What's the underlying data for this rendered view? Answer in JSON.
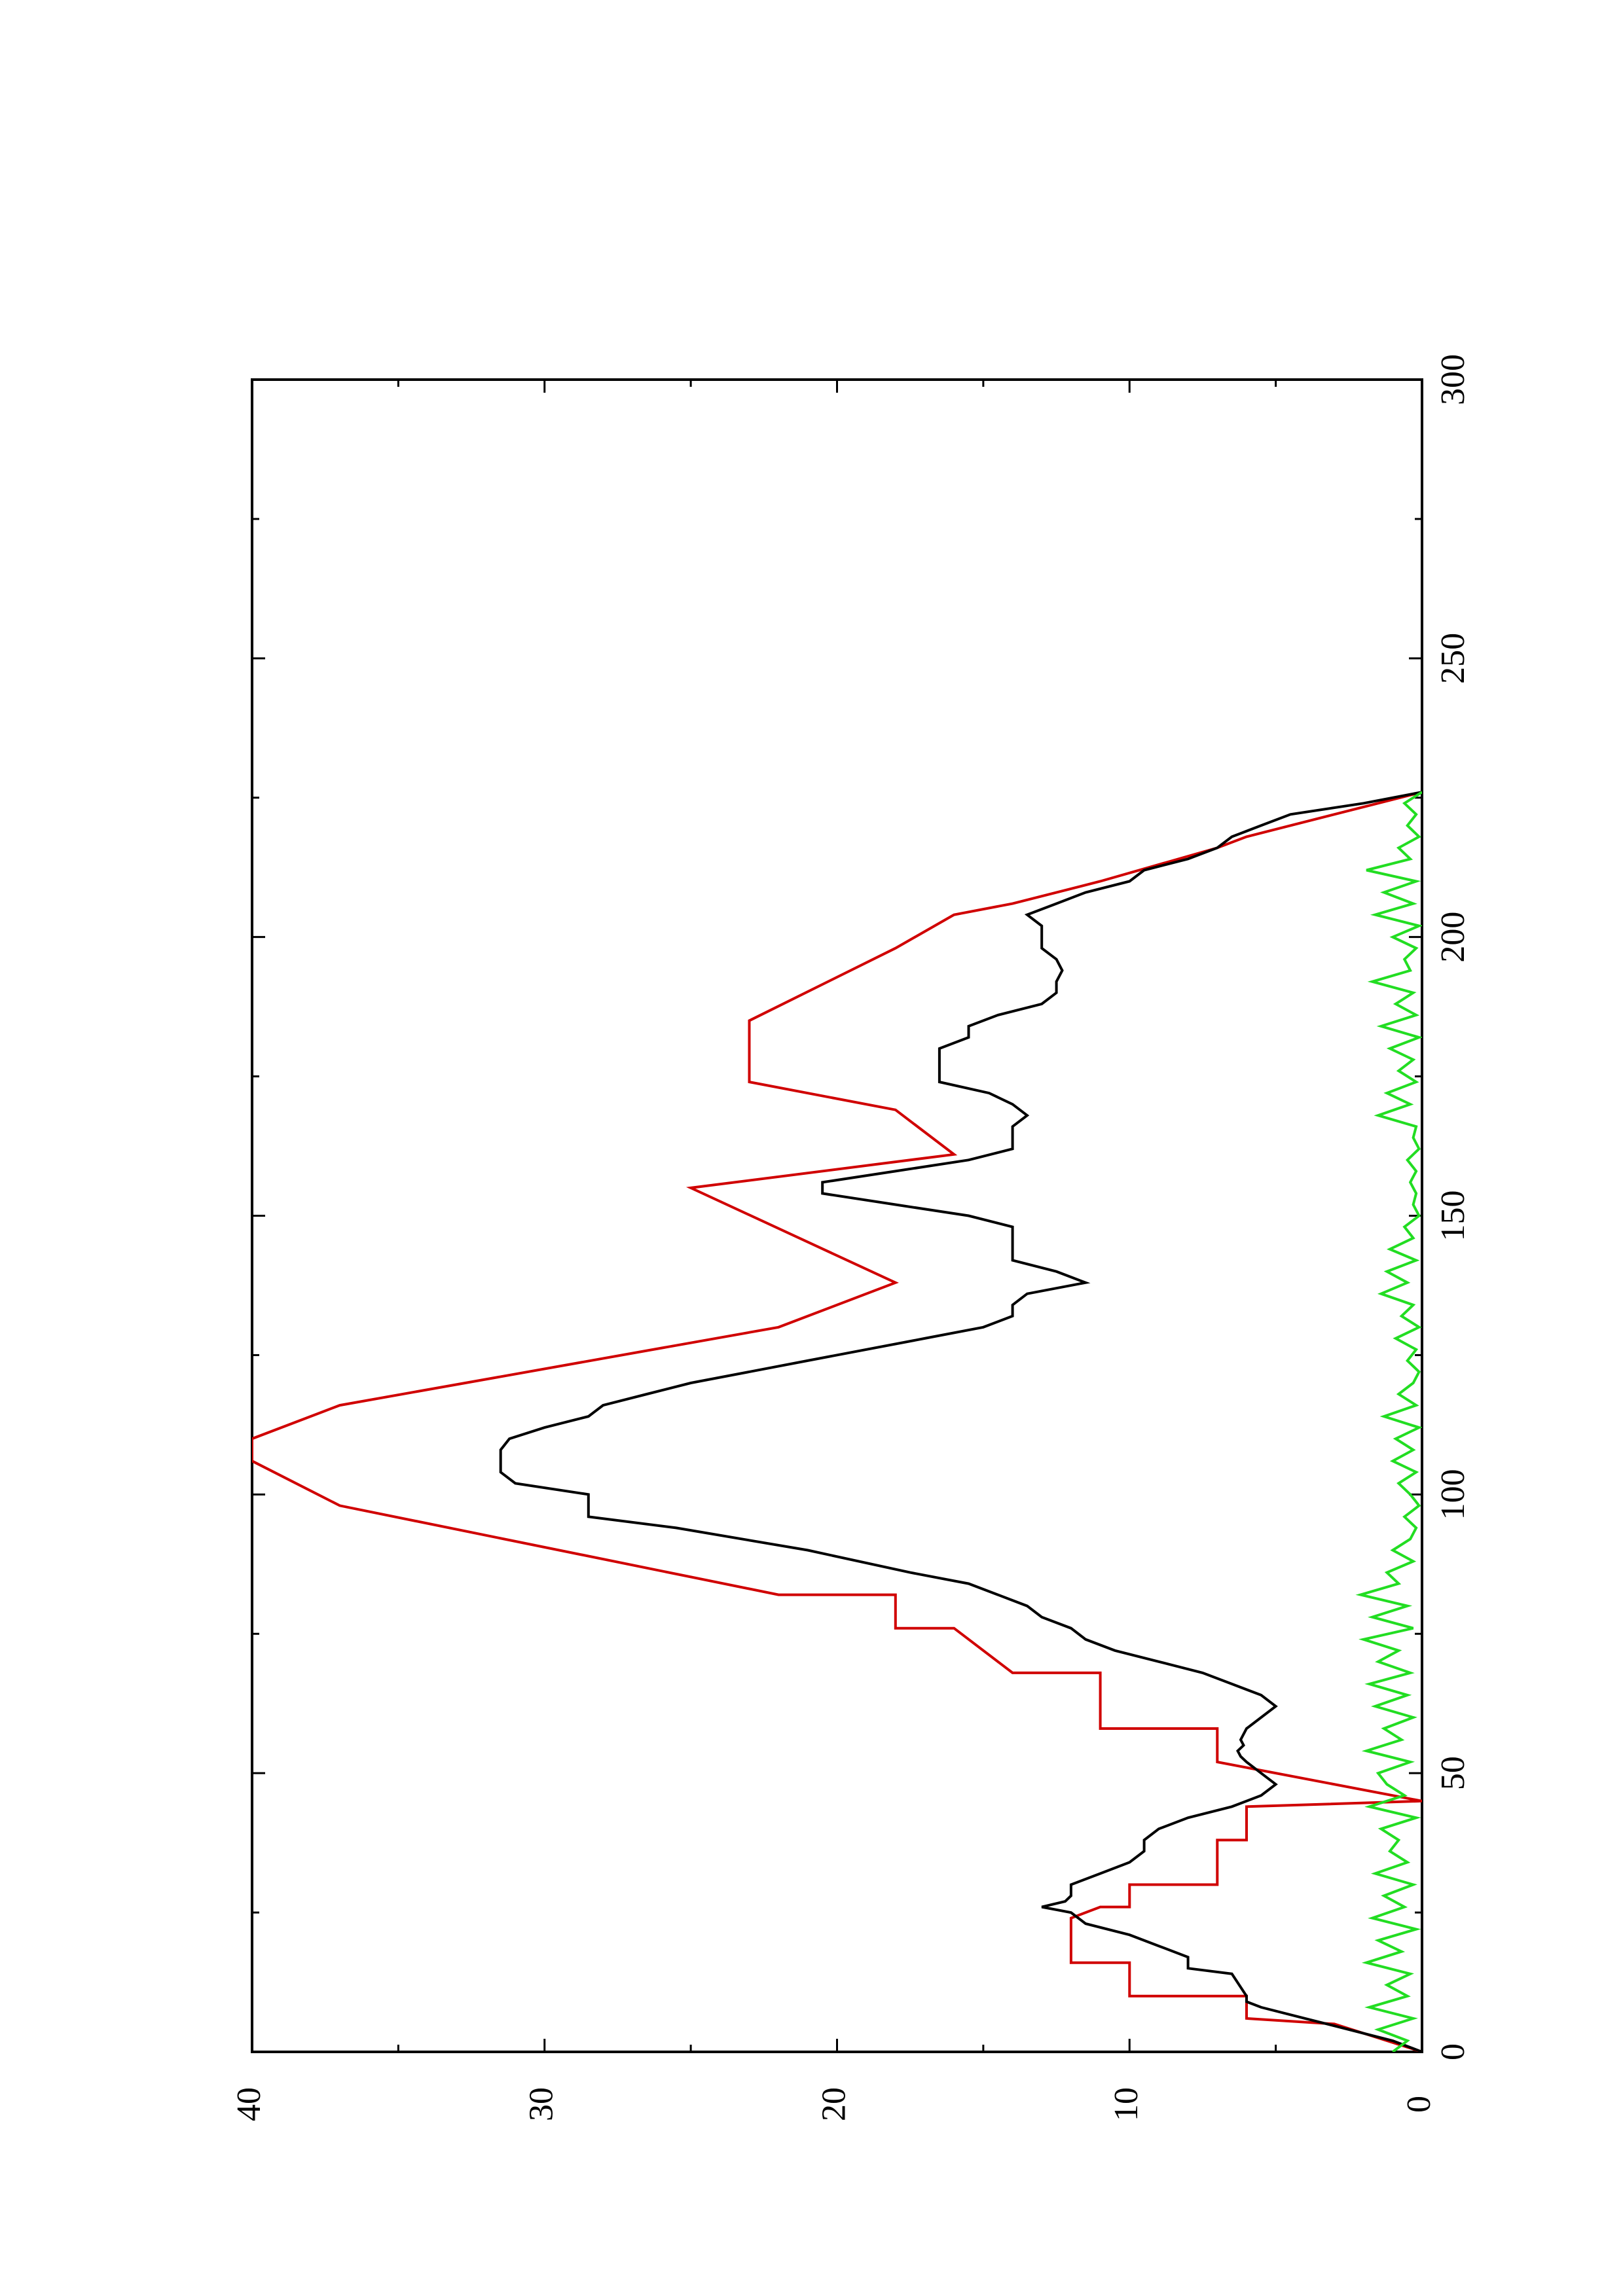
{
  "chart_data": {
    "type": "line",
    "orientation": "rotated-90-ccw",
    "title": "",
    "xlabel": "",
    "ylabel": "",
    "xlim": [
      0,
      300
    ],
    "ylim": [
      0,
      40
    ],
    "x_ticks": [
      "0",
      "50",
      "100",
      "150",
      "200",
      "250",
      "300"
    ],
    "y_ticks": [
      "0",
      "10",
      "20",
      "30",
      "40"
    ],
    "grid": false,
    "legend": "none",
    "series": [
      {
        "color": "#d00000",
        "x": [
          0,
          5,
          6,
          10,
          10,
          16,
          16,
          24,
          25,
          26,
          26,
          30,
          30,
          38,
          38,
          44,
          45,
          52,
          52,
          58,
          58,
          68,
          68,
          76,
          76,
          82,
          82,
          98,
          98,
          106,
          106,
          108,
          110,
          116,
          116,
          130,
          130,
          138,
          138,
          155,
          155,
          161,
          161,
          169,
          169,
          174,
          174,
          185,
          185,
          198,
          198,
          204,
          204,
          206,
          206,
          210,
          210,
          216,
          216,
          218,
          218,
          226
        ],
        "values": [
          0,
          3,
          6,
          6,
          10,
          10,
          12,
          12,
          11.5,
          11,
          10,
          10,
          7,
          7,
          6,
          6,
          0,
          7,
          7,
          7,
          11,
          11,
          14,
          16,
          18,
          18,
          22,
          37,
          37,
          40,
          40,
          40,
          40,
          37,
          37,
          22,
          22,
          18,
          18,
          25,
          25,
          16,
          16,
          18,
          18,
          23,
          23,
          23,
          23,
          18,
          18,
          16,
          16,
          14,
          14,
          11,
          11,
          7,
          7,
          6,
          6,
          0
        ]
      },
      {
        "color": "#000000",
        "x": [
          0,
          2,
          4,
          6,
          8,
          9,
          10,
          14,
          15,
          17,
          19,
          21,
          23,
          25,
          26,
          27,
          28,
          30,
          32,
          34,
          36,
          38,
          40,
          42,
          44,
          46,
          48,
          50,
          52,
          53,
          54,
          55,
          56,
          58,
          60,
          62,
          64,
          66,
          68,
          70,
          72,
          74,
          76,
          78,
          80,
          82,
          84,
          86,
          90,
          94,
          96,
          98,
          100,
          102,
          104,
          106,
          108,
          110,
          112,
          114,
          116,
          118,
          120,
          124,
          128,
          130,
          132,
          134,
          136,
          138,
          140,
          142,
          144,
          146,
          148,
          150,
          152,
          154,
          156,
          158,
          160,
          162,
          164,
          166,
          168,
          170,
          172,
          174,
          176,
          178,
          180,
          182,
          184,
          186,
          188,
          190,
          192,
          194,
          196,
          198,
          200,
          202,
          204,
          206,
          208,
          210,
          212,
          214,
          216,
          218,
          220,
          222,
          224,
          226
        ],
        "values": [
          0,
          1,
          2.5,
          4,
          5.5,
          6,
          6,
          6.5,
          8,
          8,
          9,
          10,
          11.5,
          12,
          13,
          12.2,
          12,
          12,
          11,
          10,
          9.5,
          9.5,
          9,
          8,
          6.5,
          5.5,
          5,
          5.5,
          6,
          6.2,
          6.3,
          6.1,
          6.2,
          6,
          5.5,
          5,
          5.5,
          6.5,
          7.5,
          9,
          10.5,
          11.5,
          12,
          13,
          13.5,
          14.5,
          15.5,
          17.5,
          21,
          25.5,
          28.5,
          28.5,
          28.5,
          31,
          31.5,
          31.5,
          31.5,
          31.2,
          30,
          28.5,
          28,
          26.5,
          25,
          21,
          17,
          15,
          14,
          14,
          13.5,
          11.5,
          12.5,
          14,
          14,
          14,
          14,
          15.5,
          18,
          20.5,
          20.5,
          18,
          15.5,
          14,
          14,
          14,
          13.5,
          14,
          14.8,
          16.5,
          16.5,
          16.5,
          16.5,
          15.5,
          15.5,
          14.5,
          13,
          12.5,
          12.5,
          12.3,
          12.5,
          13,
          13,
          13,
          13.5,
          12.5,
          11.5,
          10,
          9.5,
          8,
          7,
          6.5,
          5.5,
          4.5,
          2,
          0
        ]
      },
      {
        "color": "#22dd22",
        "x": [
          0,
          2,
          4,
          6,
          8,
          10,
          12,
          14,
          16,
          18,
          20,
          22,
          24,
          26,
          28,
          30,
          32,
          34,
          36,
          38,
          40,
          42,
          44,
          46,
          48,
          50,
          52,
          54,
          56,
          58,
          60,
          62,
          64,
          66,
          68,
          70,
          72,
          74,
          76,
          78,
          80,
          82,
          84,
          86,
          88,
          90,
          92,
          94,
          96,
          98,
          100,
          102,
          104,
          106,
          108,
          110,
          112,
          114,
          116,
          118,
          120,
          122,
          124,
          126,
          128,
          130,
          132,
          134,
          136,
          138,
          140,
          142,
          144,
          146,
          148,
          150,
          152,
          154,
          156,
          158,
          160,
          162,
          164,
          166,
          168,
          170,
          172,
          174,
          176,
          178,
          180,
          182,
          184,
          186,
          188,
          190,
          192,
          194,
          196,
          198,
          200,
          202,
          204,
          206,
          208,
          210,
          212,
          214,
          216,
          218,
          220,
          222,
          224,
          226
        ],
        "values": [
          1,
          0.5,
          1.5,
          0.3,
          1.8,
          0.5,
          1.2,
          0.4,
          1.9,
          0.7,
          1.5,
          0.2,
          1.7,
          0.6,
          1.3,
          0.3,
          1.6,
          0.5,
          1.1,
          0.8,
          1.4,
          0.2,
          1.8,
          0.6,
          1.2,
          1.5,
          0.4,
          1.9,
          0.7,
          1.3,
          0.3,
          1.6,
          0.5,
          1.8,
          0.4,
          1.5,
          0.8,
          2,
          0.3,
          1.7,
          0.5,
          2.1,
          0.8,
          1.2,
          0.3,
          1.0,
          0.4,
          0.2,
          0.6,
          0.1,
          0.4,
          0.8,
          0.2,
          1.0,
          0.3,
          0.9,
          0.1,
          1.3,
          0.2,
          0.8,
          0.3,
          0.1,
          0.5,
          0.2,
          0.9,
          0.1,
          0.7,
          0.3,
          1.4,
          0.5,
          1.2,
          0.2,
          1.1,
          0.3,
          0.6,
          0.1,
          0.3,
          0.2,
          0.4,
          0.2,
          0.5,
          0.1,
          0.3,
          0.2,
          1.5,
          0.4,
          1.2,
          0.2,
          0.8,
          0.3,
          1.1,
          0.1,
          1.4,
          0.2,
          0.9,
          0.3,
          1.7,
          0.4,
          0.6,
          0.2,
          1.0,
          0.1,
          1.6,
          0.3,
          1.3,
          0.2,
          1.9,
          0.4,
          0.8,
          0.1,
          0.5,
          0.2,
          0.6,
          0
        ]
      }
    ]
  }
}
